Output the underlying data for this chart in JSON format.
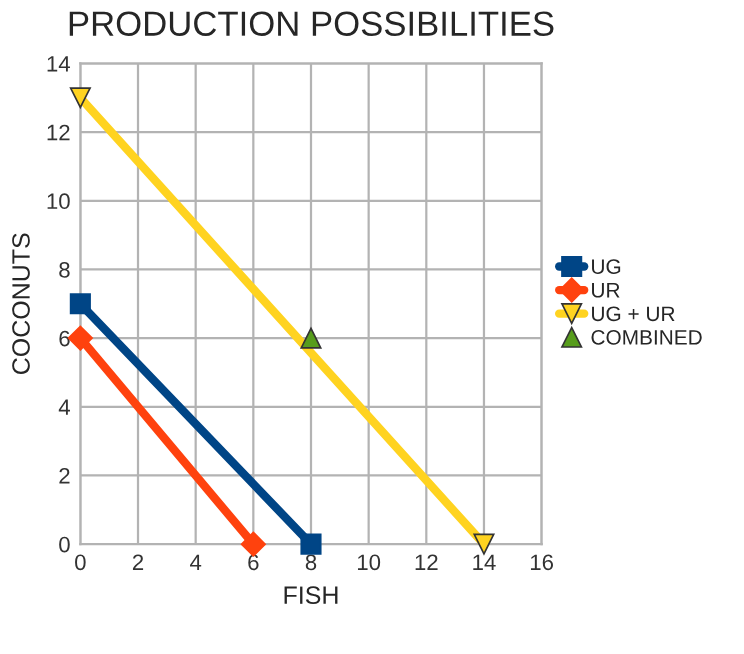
{
  "chart_data": {
    "type": "line",
    "title": "PRODUCTION POSSIBILITIES",
    "xlabel": "FISH",
    "ylabel": "COCONUTS",
    "xlim": [
      0,
      16
    ],
    "xticks": [
      0,
      2,
      4,
      6,
      8,
      10,
      12,
      14,
      16
    ],
    "ylim": [
      0,
      14
    ],
    "yticks": [
      0,
      2,
      4,
      6,
      8,
      10,
      12,
      14
    ],
    "grid": true,
    "legend": "right",
    "series": [
      {
        "name": "UG",
        "color": "#004586",
        "x": [
          0,
          8
        ],
        "values": [
          7,
          0
        ],
        "marker": "square"
      },
      {
        "name": "UR",
        "color": "#ff420e",
        "x": [
          0,
          6
        ],
        "values": [
          6,
          0
        ],
        "marker": "diamond"
      },
      {
        "name": "UG + UR",
        "color": "#ffd320",
        "x": [
          0,
          14
        ],
        "values": [
          13,
          0
        ],
        "marker": "triangle_down"
      },
      {
        "name": "COMBINED",
        "type": "scatter",
        "color": "#579d1c",
        "x": [
          8
        ],
        "values": [
          6
        ],
        "marker": "triangle"
      }
    ]
  }
}
